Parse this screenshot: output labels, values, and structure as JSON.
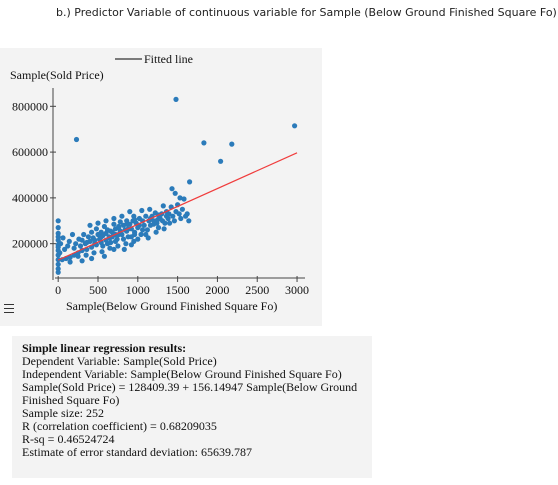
{
  "page": {
    "heading": "b.) Predictor Variable of continuous variable for Sample (Below Ground Finished Square Fo)"
  },
  "menu": {
    "icon": "hamburger-menu-icon"
  },
  "colors": {
    "points": "#2b7bba",
    "fitted_line": "#f03c3c",
    "panel_bg": "#f3f3f3"
  },
  "chart_data": {
    "type": "scatter",
    "xlabel": "Sample(Below Ground Finished Square Fo)",
    "ylabel": "Sample(Sold Price)",
    "xlim": [
      -40,
      3100
    ],
    "ylim": [
      50000,
      880000
    ],
    "xticks": [
      0,
      500,
      1000,
      1500,
      2000,
      2500,
      3000
    ],
    "xtick_labels": [
      "0",
      "500",
      "1000",
      "1500",
      "2000",
      "2500",
      "3000"
    ],
    "yticks": [
      200000,
      400000,
      600000,
      800000
    ],
    "ytick_labels": [
      "200000",
      "400000",
      "600000",
      "800000"
    ],
    "legend": {
      "label": "Fitted line",
      "position": "top"
    },
    "fitted_line": {
      "intercept": 128409.39,
      "slope": 156.14947,
      "x_range": [
        0,
        3000
      ]
    },
    "series": [
      {
        "points": [
          [
            1480,
            830000
          ],
          [
            230,
            655000
          ],
          [
            2970,
            715000
          ],
          [
            1830,
            640000
          ],
          [
            2180,
            635000
          ],
          [
            2040,
            560000
          ],
          [
            1650,
            470000
          ],
          [
            1430,
            440000
          ],
          [
            1470,
            420000
          ],
          [
            1530,
            400000
          ],
          [
            1420,
            360000
          ],
          [
            1390,
            330000
          ],
          [
            1310,
            300000
          ],
          [
            1250,
            305000
          ],
          [
            1580,
            395000
          ],
          [
            1320,
            365000
          ],
          [
            1500,
            370000
          ],
          [
            1560,
            350000
          ],
          [
            1620,
            330000
          ],
          [
            1200,
            285000
          ],
          [
            950,
            320000
          ],
          [
            1020,
            280000
          ],
          [
            880,
            265000
          ],
          [
            780,
            255000
          ],
          [
            720,
            240000
          ],
          [
            650,
            225000
          ],
          [
            600,
            215000
          ],
          [
            540,
            205000
          ],
          [
            480,
            195000
          ],
          [
            420,
            185000
          ],
          [
            360,
            175000
          ],
          [
            300,
            170000
          ],
          [
            250,
            160000
          ],
          [
            200,
            150000
          ],
          [
            150,
            140000
          ],
          [
            100,
            135000
          ],
          [
            50,
            130000
          ],
          [
            0,
            130000
          ],
          [
            0,
            150000
          ],
          [
            0,
            170000
          ],
          [
            0,
            195000
          ],
          [
            0,
            215000
          ],
          [
            0,
            245000
          ],
          [
            0,
            270000
          ],
          [
            0,
            300000
          ],
          [
            0,
            110000
          ],
          [
            0,
            90000
          ],
          [
            0,
            75000
          ],
          [
            0,
            185000
          ],
          [
            0,
            230000
          ],
          [
            20,
            160000
          ],
          [
            30,
            200000
          ],
          [
            60,
            225000
          ],
          [
            80,
            175000
          ],
          [
            120,
            190000
          ],
          [
            140,
            210000
          ],
          [
            180,
            240000
          ],
          [
            200,
            180000
          ],
          [
            220,
            200000
          ],
          [
            260,
            220000
          ],
          [
            280,
            190000
          ],
          [
            300,
            215000
          ],
          [
            320,
            240000
          ],
          [
            340,
            200000
          ],
          [
            380,
            230000
          ],
          [
            400,
            210000
          ],
          [
            420,
            250000
          ],
          [
            440,
            225000
          ],
          [
            460,
            200000
          ],
          [
            480,
            265000
          ],
          [
            500,
            240000
          ],
          [
            520,
            220000
          ],
          [
            540,
            250000
          ],
          [
            560,
            190000
          ],
          [
            580,
            275000
          ],
          [
            600,
            245000
          ],
          [
            620,
            260000
          ],
          [
            640,
            230000
          ],
          [
            660,
            205000
          ],
          [
            680,
            250000
          ],
          [
            700,
            285000
          ],
          [
            720,
            265000
          ],
          [
            740,
            220000
          ],
          [
            760,
            270000
          ],
          [
            780,
            295000
          ],
          [
            800,
            240000
          ],
          [
            820,
            280000
          ],
          [
            840,
            260000
          ],
          [
            860,
            300000
          ],
          [
            880,
            230000
          ],
          [
            900,
            285000
          ],
          [
            920,
            265000
          ],
          [
            940,
            300000
          ],
          [
            960,
            250000
          ],
          [
            980,
            290000
          ],
          [
            1000,
            270000
          ],
          [
            1020,
            310000
          ],
          [
            1040,
            240000
          ],
          [
            1060,
            300000
          ],
          [
            1080,
            280000
          ],
          [
            1100,
            320000
          ],
          [
            1120,
            260000
          ],
          [
            1140,
            300000
          ],
          [
            1160,
            280000
          ],
          [
            1180,
            320000
          ],
          [
            1200,
            300000
          ],
          [
            1220,
            335000
          ],
          [
            1240,
            290000
          ],
          [
            1260,
            270000
          ],
          [
            1280,
            310000
          ],
          [
            1300,
            330000
          ],
          [
            1340,
            290000
          ],
          [
            1360,
            340000
          ],
          [
            1380,
            310000
          ],
          [
            1400,
            290000
          ],
          [
            1440,
            320000
          ],
          [
            1460,
            300000
          ],
          [
            1480,
            340000
          ],
          [
            1520,
            330000
          ],
          [
            1540,
            310000
          ],
          [
            1600,
            320000
          ],
          [
            1640,
            300000
          ],
          [
            1050,
            345000
          ],
          [
            1150,
            350000
          ],
          [
            900,
            340000
          ],
          [
            800,
            320000
          ],
          [
            700,
            310000
          ],
          [
            600,
            300000
          ],
          [
            500,
            290000
          ],
          [
            400,
            280000
          ],
          [
            650,
            180000
          ],
          [
            750,
            190000
          ],
          [
            850,
            200000
          ],
          [
            950,
            210000
          ],
          [
            550,
            165000
          ],
          [
            450,
            160000
          ],
          [
            350,
            150000
          ],
          [
            250,
            145000
          ],
          [
            150,
            120000
          ],
          [
            1000,
            220000
          ],
          [
            1100,
            240000
          ],
          [
            700,
            175000
          ],
          [
            420,
            135000
          ],
          [
            300,
            125000
          ],
          [
            580,
            145000
          ],
          [
            830,
            175000
          ],
          [
            920,
            195000
          ],
          [
            1130,
            225000
          ],
          [
            1230,
            250000
          ],
          [
            1330,
            265000
          ],
          [
            680,
            230000
          ],
          [
            760,
            240000
          ],
          [
            860,
            255000
          ],
          [
            960,
            240000
          ],
          [
            1060,
            260000
          ],
          [
            540,
            230000
          ],
          [
            620,
            200000
          ],
          [
            720,
            210000
          ],
          [
            820,
            220000
          ],
          [
            920,
            230000
          ],
          [
            360,
            205000
          ],
          [
            460,
            215000
          ],
          [
            560,
            235000
          ],
          [
            660,
            255000
          ],
          [
            760,
            275000
          ],
          [
            860,
            285000
          ],
          [
            960,
            305000
          ],
          [
            1160,
            310000
          ],
          [
            1260,
            325000
          ],
          [
            1360,
            320000
          ]
        ]
      }
    ]
  },
  "results": {
    "title": "Simple linear regression results:",
    "lines": [
      "Dependent Variable: Sample(Sold Price)",
      "Independent Variable: Sample(Below Ground Finished Square Fo)",
      "Sample(Sold Price) = 128409.39 + 156.14947 Sample(Below Ground",
      "Finished Square Fo)",
      "Sample size: 252",
      "R (correlation coefficient) = 0.68209035",
      "R-sq = 0.46524724",
      "Estimate of error standard deviation: 65639.787"
    ]
  }
}
